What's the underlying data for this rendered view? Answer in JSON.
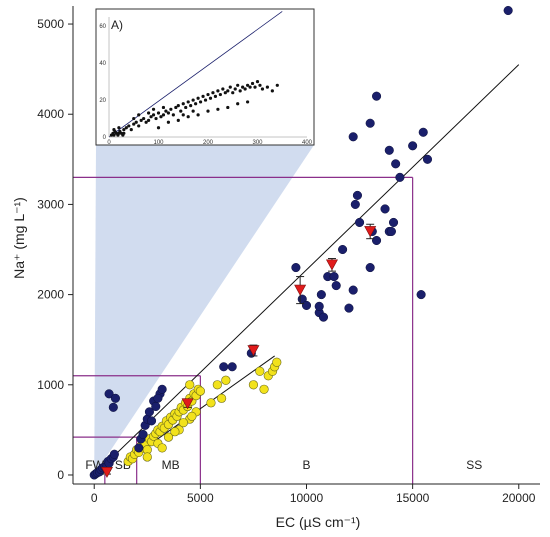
{
  "chart_data": {
    "type": "scatter",
    "xlabel": "EC (µS cm⁻¹)",
    "ylabel": "Na⁺ (mg L⁻¹)",
    "xlim": [
      -1000,
      21000
    ],
    "ylim": [
      -100,
      5200
    ],
    "xticks": [
      0,
      5000,
      10000,
      15000,
      20000
    ],
    "yticks": [
      0,
      1000,
      2000,
      3000,
      4000,
      5000
    ],
    "grid": false,
    "zones": [
      {
        "label": "FW",
        "x_center": 20
      },
      {
        "label": "SB",
        "x_center": 1350
      },
      {
        "label": "MB",
        "x_center": 3600
      },
      {
        "label": "B",
        "x_center": 10000
      },
      {
        "label": "SS",
        "x_center": 17900
      }
    ],
    "zone_boundaries": [
      {
        "ec": 500,
        "na": 0
      },
      {
        "ec": 2000,
        "na": 420
      },
      {
        "ec": 5000,
        "na": 1100
      },
      {
        "ec": 15000,
        "na": 3300
      }
    ],
    "fit_lines": [
      {
        "name": "navy",
        "x": [
          0,
          20000
        ],
        "y": [
          0,
          4550
        ]
      },
      {
        "name": "yellow",
        "x": [
          1500,
          8500
        ],
        "y": [
          150,
          1320
        ]
      }
    ],
    "series": [
      {
        "name": "navy",
        "color": "#1a1f6b",
        "points": [
          [
            0,
            0
          ],
          [
            80,
            15
          ],
          [
            150,
            25
          ],
          [
            250,
            35
          ],
          [
            320,
            60
          ],
          [
            400,
            80
          ],
          [
            500,
            90
          ],
          [
            600,
            100
          ],
          [
            650,
            150
          ],
          [
            700,
            130
          ],
          [
            800,
            180
          ],
          [
            900,
            200
          ],
          [
            950,
            230
          ],
          [
            700,
            900
          ],
          [
            900,
            750
          ],
          [
            1000,
            850
          ],
          [
            2100,
            300
          ],
          [
            2200,
            400
          ],
          [
            2300,
            450
          ],
          [
            2400,
            550
          ],
          [
            2500,
            620
          ],
          [
            2600,
            700
          ],
          [
            2700,
            600
          ],
          [
            2800,
            820
          ],
          [
            2900,
            760
          ],
          [
            3100,
            900
          ],
          [
            3200,
            950
          ],
          [
            3000,
            850
          ],
          [
            6100,
            1200
          ],
          [
            6500,
            1200
          ],
          [
            7400,
            1350
          ],
          [
            9500,
            2300
          ],
          [
            9800,
            1950
          ],
          [
            10000,
            1880
          ],
          [
            10600,
            1800
          ],
          [
            10600,
            1870
          ],
          [
            10700,
            2000
          ],
          [
            10800,
            1750
          ],
          [
            11000,
            2200
          ],
          [
            11300,
            2200
          ],
          [
            11400,
            2100
          ],
          [
            11700,
            2500
          ],
          [
            12000,
            1850
          ],
          [
            12200,
            2050
          ],
          [
            12300,
            3000
          ],
          [
            12400,
            3100
          ],
          [
            12500,
            2800
          ],
          [
            13000,
            2300
          ],
          [
            13100,
            2700
          ],
          [
            13300,
            2600
          ],
          [
            13700,
            2950
          ],
          [
            13900,
            2700
          ],
          [
            14000,
            2700
          ],
          [
            14100,
            2800
          ],
          [
            14200,
            3450
          ],
          [
            12200,
            3750
          ],
          [
            13300,
            4200
          ],
          [
            13000,
            3900
          ],
          [
            13900,
            3600
          ],
          [
            14400,
            3300
          ],
          [
            15000,
            3650
          ],
          [
            15500,
            3800
          ],
          [
            15700,
            3500
          ],
          [
            15400,
            2000
          ],
          [
            19500,
            5150
          ]
        ]
      },
      {
        "name": "yellow",
        "color": "#f2e21c",
        "points": [
          [
            1600,
            150
          ],
          [
            1700,
            200
          ],
          [
            1800,
            180
          ],
          [
            1900,
            230
          ],
          [
            2000,
            280
          ],
          [
            2100,
            250
          ],
          [
            2200,
            320
          ],
          [
            2300,
            300
          ],
          [
            2400,
            350
          ],
          [
            2500,
            280
          ],
          [
            2600,
            400
          ],
          [
            2700,
            370
          ],
          [
            2800,
            430
          ],
          [
            2900,
            460
          ],
          [
            3000,
            500
          ],
          [
            3100,
            480
          ],
          [
            3200,
            540
          ],
          [
            3300,
            520
          ],
          [
            3400,
            600
          ],
          [
            3500,
            560
          ],
          [
            3600,
            640
          ],
          [
            3700,
            610
          ],
          [
            3800,
            680
          ],
          [
            3900,
            650
          ],
          [
            4000,
            700
          ],
          [
            4100,
            750
          ],
          [
            4200,
            720
          ],
          [
            4300,
            800
          ],
          [
            4400,
            760
          ],
          [
            4500,
            850
          ],
          [
            4600,
            820
          ],
          [
            4700,
            900
          ],
          [
            4800,
            880
          ],
          [
            4900,
            950
          ],
          [
            5000,
            930
          ],
          [
            2500,
            200
          ],
          [
            3000,
            350
          ],
          [
            3500,
            420
          ],
          [
            4000,
            500
          ],
          [
            4500,
            620
          ],
          [
            4800,
            700
          ],
          [
            3200,
            300
          ],
          [
            3800,
            480
          ],
          [
            4200,
            580
          ],
          [
            4600,
            650
          ],
          [
            5500,
            800
          ],
          [
            6000,
            850
          ],
          [
            7500,
            1000
          ],
          [
            7800,
            1150
          ],
          [
            8000,
            950
          ],
          [
            8200,
            1100
          ],
          [
            8400,
            1150
          ],
          [
            8500,
            1200
          ],
          [
            8600,
            1250
          ],
          [
            5800,
            1000
          ],
          [
            4500,
            1000
          ],
          [
            6200,
            1050
          ]
        ]
      },
      {
        "name": "mean",
        "color": "#e01b1b",
        "points": [
          [
            600,
            30
          ],
          [
            4400,
            790
          ],
          [
            7500,
            1380
          ],
          [
            9700,
            2050
          ],
          [
            11200,
            2330
          ],
          [
            13000,
            2700
          ]
        ],
        "yerr": [
          20,
          40,
          60,
          150,
          70,
          80
        ]
      }
    ],
    "inset": {
      "label": "A)",
      "xlim": [
        0,
        400
      ],
      "ylim": [
        0,
        65
      ],
      "xticks": [
        0,
        100,
        200,
        300,
        400
      ],
      "yticks": [
        0,
        20,
        40,
        60
      ],
      "line": {
        "x": [
          0,
          350
        ],
        "y": [
          0,
          68
        ]
      },
      "points": [
        [
          5,
          1
        ],
        [
          8,
          2
        ],
        [
          10,
          1
        ],
        [
          12,
          3
        ],
        [
          15,
          2
        ],
        [
          18,
          1
        ],
        [
          20,
          2
        ],
        [
          22,
          3
        ],
        [
          25,
          2
        ],
        [
          28,
          1
        ],
        [
          30,
          4
        ],
        [
          35,
          5
        ],
        [
          40,
          6
        ],
        [
          45,
          4
        ],
        [
          50,
          7
        ],
        [
          55,
          8
        ],
        [
          60,
          6
        ],
        [
          65,
          9
        ],
        [
          70,
          10
        ],
        [
          75,
          8
        ],
        [
          80,
          9
        ],
        [
          85,
          11
        ],
        [
          90,
          12
        ],
        [
          95,
          10
        ],
        [
          100,
          13
        ],
        [
          105,
          11
        ],
        [
          110,
          12
        ],
        [
          115,
          14
        ],
        [
          120,
          13
        ],
        [
          125,
          15
        ],
        [
          130,
          12
        ],
        [
          135,
          16
        ],
        [
          140,
          17
        ],
        [
          145,
          14
        ],
        [
          150,
          18
        ],
        [
          155,
          16
        ],
        [
          160,
          19
        ],
        [
          165,
          17
        ],
        [
          170,
          20
        ],
        [
          175,
          18
        ],
        [
          180,
          21
        ],
        [
          185,
          19
        ],
        [
          190,
          22
        ],
        [
          195,
          20
        ],
        [
          200,
          23
        ],
        [
          205,
          21
        ],
        [
          210,
          24
        ],
        [
          215,
          22
        ],
        [
          220,
          25
        ],
        [
          225,
          23
        ],
        [
          230,
          26
        ],
        [
          235,
          24
        ],
        [
          240,
          25
        ],
        [
          245,
          27
        ],
        [
          250,
          24
        ],
        [
          255,
          26
        ],
        [
          260,
          28
        ],
        [
          265,
          25
        ],
        [
          270,
          27
        ],
        [
          275,
          26
        ],
        [
          280,
          28
        ],
        [
          285,
          27
        ],
        [
          290,
          29
        ],
        [
          295,
          27
        ],
        [
          300,
          30
        ],
        [
          305,
          28
        ],
        [
          310,
          26
        ],
        [
          320,
          27
        ],
        [
          330,
          25
        ],
        [
          340,
          28
        ],
        [
          100,
          5
        ],
        [
          120,
          8
        ],
        [
          140,
          9
        ],
        [
          160,
          11
        ],
        [
          180,
          12
        ],
        [
          200,
          14
        ],
        [
          220,
          15
        ],
        [
          240,
          16
        ],
        [
          260,
          18
        ],
        [
          280,
          19
        ],
        [
          10,
          4
        ],
        [
          20,
          5
        ],
        [
          30,
          2
        ],
        [
          50,
          10
        ],
        [
          60,
          12
        ],
        [
          80,
          13
        ],
        [
          90,
          15
        ],
        [
          110,
          16
        ],
        [
          150,
          12
        ],
        [
          170,
          14
        ]
      ]
    }
  }
}
